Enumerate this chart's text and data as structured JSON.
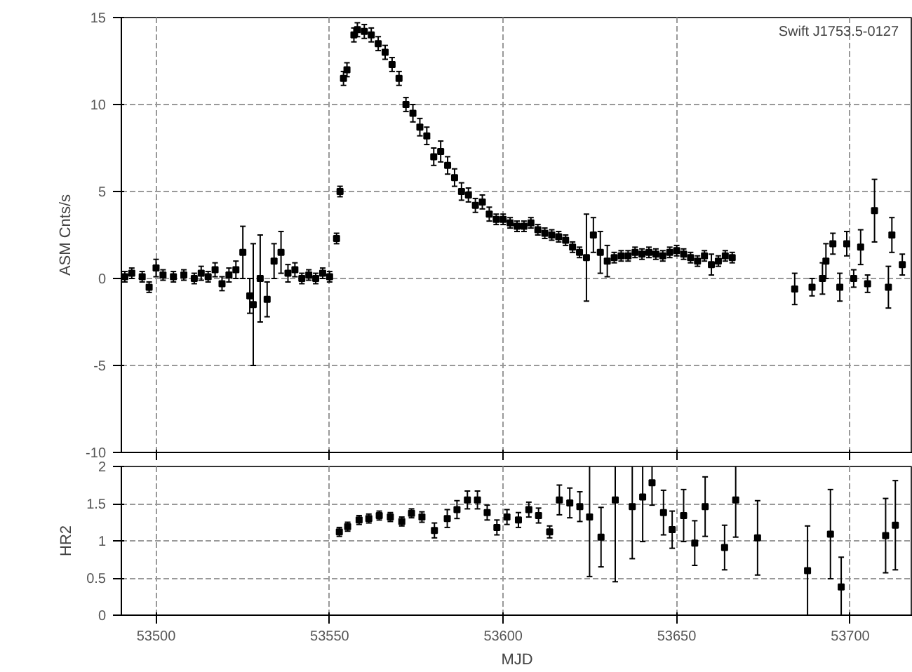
{
  "chart_data": [
    {
      "type": "scatter",
      "ylabel": "ASM Cnts/s",
      "annotations": [
        "Swift J1753.5-0127"
      ],
      "xlim": [
        53490,
        53718
      ],
      "xticks": [
        53500,
        53550,
        53600,
        53650,
        53700
      ],
      "ylim": [
        -10,
        15
      ],
      "yticks": [
        -10,
        -5,
        0,
        5,
        10,
        15
      ],
      "grid": true,
      "marker": "square",
      "tick_labels": "y",
      "series": [
        {
          "color": "#000000",
          "x": [
            53491,
            53493,
            53496,
            53498,
            53500,
            53502,
            53505,
            53508,
            53511,
            53513,
            53515,
            53517,
            53519,
            53521,
            53523,
            53525,
            53527,
            53528,
            53530,
            53532,
            53534,
            53536,
            53538,
            53540,
            53542,
            53544,
            53546,
            53548,
            53550,
            53552,
            53553,
            53554,
            53555,
            53557,
            53558,
            53560,
            53562,
            53564,
            53566,
            53568,
            53570,
            53572,
            53574,
            53576,
            53578,
            53580,
            53582,
            53584,
            53586,
            53588,
            53590,
            53592,
            53594,
            53596,
            53598,
            53600,
            53602,
            53604,
            53606,
            53608,
            53610,
            53612,
            53614,
            53616,
            53618,
            53620,
            53622,
            53624,
            53626,
            53628,
            53630,
            53632,
            53634,
            53636,
            53638,
            53640,
            53642,
            53644,
            53646,
            53648,
            53650,
            53652,
            53654,
            53656,
            53658,
            53660,
            53662,
            53664,
            53666,
            53684,
            53689,
            53692,
            53693,
            53695,
            53697,
            53699,
            53701,
            53703,
            53705,
            53707,
            53711,
            53712,
            53715
          ],
          "values": [
            0.1,
            0.3,
            0.1,
            -0.5,
            0.6,
            0.2,
            0.1,
            0.2,
            0.0,
            0.3,
            0.1,
            0.5,
            -0.3,
            0.2,
            0.5,
            1.5,
            -1.0,
            -1.5,
            0.0,
            -1.2,
            1.0,
            1.5,
            0.3,
            0.5,
            0.0,
            0.2,
            0.0,
            0.3,
            0.1,
            2.3,
            5.0,
            11.5,
            12.0,
            14.0,
            14.3,
            14.2,
            14.0,
            13.5,
            13.0,
            12.3,
            11.5,
            10.0,
            9.5,
            8.7,
            8.2,
            7.0,
            7.3,
            6.5,
            5.8,
            5.0,
            4.8,
            4.2,
            4.4,
            3.7,
            3.4,
            3.4,
            3.2,
            3.0,
            3.0,
            3.2,
            2.8,
            2.6,
            2.5,
            2.4,
            2.2,
            1.8,
            1.5,
            1.2,
            2.5,
            1.5,
            1.0,
            1.2,
            1.3,
            1.3,
            1.5,
            1.4,
            1.5,
            1.4,
            1.3,
            1.5,
            1.6,
            1.4,
            1.2,
            1.0,
            1.3,
            0.8,
            1.0,
            1.3,
            1.2,
            -0.6,
            -0.5,
            0.0,
            1.0,
            2.0,
            -0.5,
            2.0,
            0.0,
            1.8,
            -0.3,
            3.9,
            -0.5,
            2.5,
            0.8
          ],
          "errors": [
            0.3,
            0.3,
            0.3,
            0.3,
            0.5,
            0.3,
            0.3,
            0.3,
            0.3,
            0.4,
            0.3,
            0.4,
            0.4,
            0.4,
            0.5,
            1.5,
            1.0,
            3.5,
            2.5,
            1.0,
            1.0,
            1.2,
            0.5,
            0.4,
            0.3,
            0.3,
            0.3,
            0.3,
            0.3,
            0.3,
            0.3,
            0.4,
            0.4,
            0.4,
            0.4,
            0.4,
            0.4,
            0.4,
            0.4,
            0.4,
            0.4,
            0.4,
            0.5,
            0.5,
            0.5,
            0.5,
            0.6,
            0.5,
            0.5,
            0.5,
            0.4,
            0.4,
            0.4,
            0.4,
            0.3,
            0.3,
            0.3,
            0.3,
            0.3,
            0.3,
            0.3,
            0.3,
            0.3,
            0.3,
            0.3,
            0.3,
            0.3,
            2.5,
            1.0,
            1.2,
            0.9,
            0.3,
            0.3,
            0.3,
            0.3,
            0.3,
            0.3,
            0.3,
            0.3,
            0.3,
            0.3,
            0.3,
            0.3,
            0.3,
            0.3,
            0.6,
            0.3,
            0.3,
            0.3,
            0.9,
            0.5,
            0.9,
            1.0,
            0.6,
            0.8,
            0.7,
            0.5,
            1.0,
            0.5,
            1.8,
            1.2,
            1.0,
            0.6
          ]
        }
      ]
    },
    {
      "type": "scatter",
      "xlabel": "MJD",
      "ylabel": "HR2",
      "xlim": [
        53490,
        53718
      ],
      "xticks": [
        53500,
        53550,
        53600,
        53650,
        53700
      ],
      "ylim": [
        0,
        2
      ],
      "yticks": [
        0,
        0.5,
        1,
        1.5,
        2
      ],
      "grid": true,
      "marker": "square",
      "series": [
        {
          "color": "#000000",
          "x": [
            53552.8,
            53555.2,
            53558.5,
            53561.3,
            53564.3,
            53567.5,
            53570.8,
            53573.6,
            53576.6,
            53580.2,
            53583.9,
            53586.7,
            53589.7,
            53592.6,
            53595.4,
            53598.2,
            53601.1,
            53604.4,
            53607.4,
            53610.2,
            53613.4,
            53616.2,
            53619.2,
            53622.1,
            53624.9,
            53628.2,
            53632.3,
            53637.2,
            53640.2,
            53642.9,
            53646.2,
            53648.7,
            53652,
            53655.2,
            53658.2,
            53663.8,
            53667,
            53673.3,
            53687.7,
            53694.3,
            53697.4,
            53710.2,
            53713
          ],
          "values": [
            1.12,
            1.19,
            1.28,
            1.3,
            1.34,
            1.32,
            1.26,
            1.37,
            1.32,
            1.14,
            1.3,
            1.42,
            1.55,
            1.55,
            1.38,
            1.18,
            1.32,
            1.28,
            1.42,
            1.34,
            1.12,
            1.55,
            1.51,
            1.46,
            1.32,
            1.05,
            1.55,
            1.46,
            1.59,
            1.78,
            1.38,
            1.15,
            1.34,
            0.97,
            1.46,
            0.91,
            1.55,
            1.04,
            0.6,
            1.09,
            0.38,
            1.07,
            1.21
          ],
          "errors": [
            0.06,
            0.06,
            0.06,
            0.06,
            0.06,
            0.06,
            0.06,
            0.06,
            0.07,
            0.1,
            0.12,
            0.12,
            0.12,
            0.12,
            0.1,
            0.1,
            0.1,
            0.1,
            0.1,
            0.1,
            0.08,
            0.2,
            0.2,
            0.2,
            0.8,
            0.4,
            1.1,
            0.7,
            0.6,
            0.3,
            0.3,
            0.25,
            0.35,
            0.3,
            0.4,
            0.3,
            0.5,
            0.5,
            0.6,
            0.6,
            0.4,
            0.5,
            0.6
          ]
        }
      ]
    }
  ]
}
